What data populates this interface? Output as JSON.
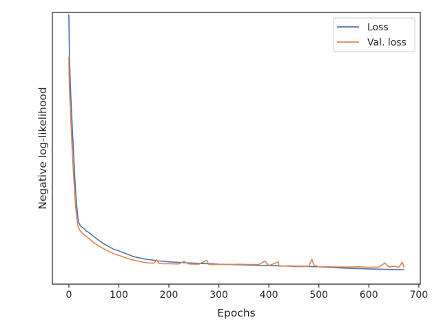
{
  "chart_data": {
    "type": "line",
    "title": "",
    "xlabel": "Epochs",
    "ylabel": "Negative log-likelihood",
    "xlim": [
      -33,
      703
    ],
    "ylim": [
      0.0,
      1.0
    ],
    "x_ticks": [
      0,
      100,
      200,
      300,
      400,
      500,
      600,
      700
    ],
    "y_ticks": [],
    "grid": false,
    "legend": {
      "placement": "top-right"
    },
    "series": [
      {
        "name": "Loss",
        "color": "#4c72b0",
        "x": [
          0,
          1,
          2,
          3,
          4,
          5,
          6,
          8,
          10,
          12,
          14,
          16,
          18,
          20,
          23,
          26,
          30,
          35,
          40,
          45,
          50,
          60,
          70,
          80,
          90,
          100,
          110,
          120,
          130,
          140,
          150,
          160,
          170,
          180,
          190,
          200,
          220,
          240,
          260,
          280,
          300,
          320,
          340,
          360,
          380,
          400,
          420,
          440,
          460,
          480,
          500,
          520,
          540,
          560,
          580,
          600,
          620,
          640,
          660,
          670
        ],
        "y": [
          0.992,
          0.85,
          0.79,
          0.74,
          0.69,
          0.65,
          0.61,
          0.535,
          0.46,
          0.39,
          0.33,
          0.28,
          0.245,
          0.225,
          0.215,
          0.21,
          0.205,
          0.195,
          0.19,
          0.182,
          0.175,
          0.161,
          0.148,
          0.138,
          0.128,
          0.122,
          0.115,
          0.108,
          0.101,
          0.097,
          0.093,
          0.09,
          0.088,
          0.085,
          0.084,
          0.082,
          0.08,
          0.078,
          0.076,
          0.075,
          0.073,
          0.072,
          0.071,
          0.07,
          0.069,
          0.068,
          0.067,
          0.066,
          0.065,
          0.065,
          0.064,
          0.062,
          0.06,
          0.058,
          0.057,
          0.056,
          0.055,
          0.054,
          0.053,
          0.053
        ]
      },
      {
        "name": "Val. loss",
        "color": "#dd8452",
        "x": [
          0,
          1,
          2,
          3,
          4,
          5,
          6,
          8,
          10,
          12,
          14,
          16,
          18,
          20,
          23,
          26,
          30,
          35,
          40,
          45,
          50,
          60,
          70,
          80,
          90,
          100,
          110,
          120,
          130,
          140,
          150,
          160,
          170,
          176,
          180,
          190,
          200,
          220,
          230,
          240,
          260,
          276,
          280,
          300,
          320,
          340,
          360,
          380,
          392,
          400,
          419,
          420,
          440,
          460,
          480,
          486,
          490,
          500,
          520,
          540,
          560,
          580,
          600,
          620,
          632,
          640,
          650,
          660,
          667,
          670
        ],
        "y": [
          0.836,
          0.72,
          0.68,
          0.64,
          0.6,
          0.56,
          0.52,
          0.45,
          0.385,
          0.325,
          0.275,
          0.24,
          0.215,
          0.205,
          0.195,
          0.19,
          0.182,
          0.175,
          0.168,
          0.16,
          0.152,
          0.14,
          0.13,
          0.12,
          0.112,
          0.106,
          0.099,
          0.093,
          0.088,
          0.084,
          0.08,
          0.078,
          0.077,
          0.09,
          0.076,
          0.075,
          0.075,
          0.074,
          0.084,
          0.074,
          0.073,
          0.088,
          0.072,
          0.072,
          0.072,
          0.073,
          0.072,
          0.072,
          0.085,
          0.068,
          0.082,
          0.066,
          0.067,
          0.066,
          0.066,
          0.092,
          0.07,
          0.064,
          0.064,
          0.063,
          0.063,
          0.064,
          0.062,
          0.063,
          0.078,
          0.063,
          0.066,
          0.062,
          0.081,
          0.063
        ]
      }
    ]
  }
}
